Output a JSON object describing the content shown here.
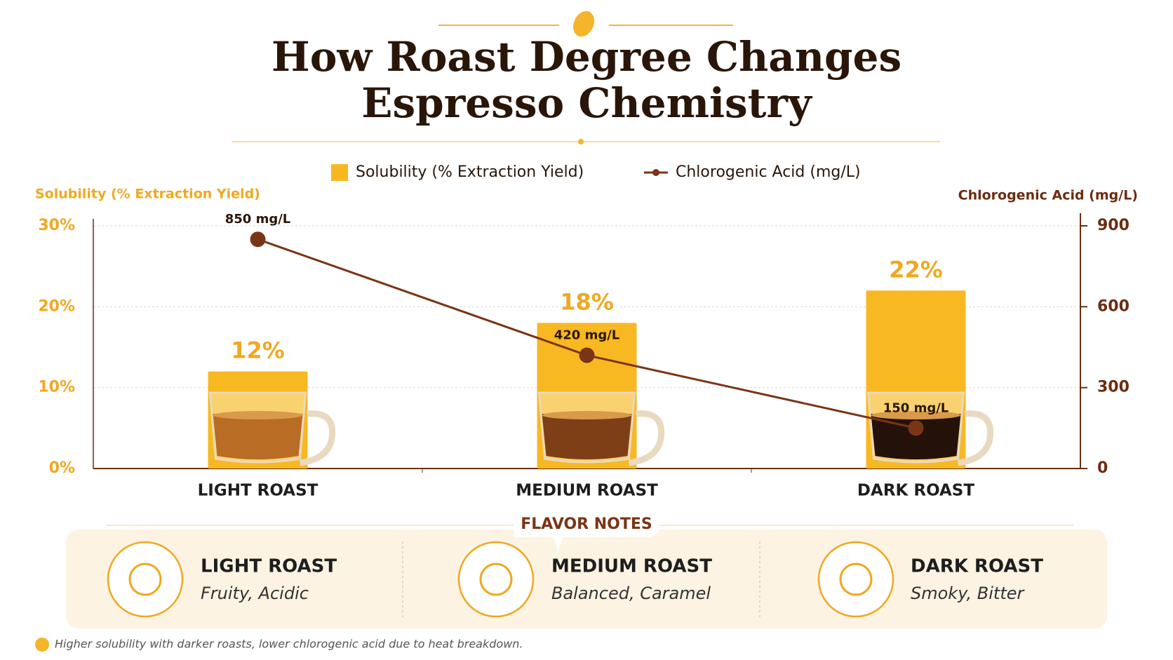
{
  "chart_data": {
    "type": "bar_line",
    "title": "How Roast Degree Changes Espresso Chemistry",
    "categories": [
      "LIGHT ROAST",
      "MEDIUM ROAST",
      "DARK ROAST"
    ],
    "ylabel": "Solubility (% Extraction Yield)",
    "y2label": "Chlorogenic Acid (mg/L)",
    "ylim": [
      0,
      30
    ],
    "yticks": [
      {
        "value": 0,
        "label": "0%"
      },
      {
        "value": 10,
        "label": "10%"
      },
      {
        "value": 20,
        "label": "20%"
      },
      {
        "value": 30,
        "label": "30%"
      }
    ],
    "y2lim": [
      0,
      900
    ],
    "y2ticks": [
      0,
      300,
      600,
      900
    ],
    "grid": true,
    "series": [
      {
        "name": "Solubility (% Extraction Yield)",
        "type": "bar",
        "color": "#f8b822",
        "values": [
          12,
          18,
          22
        ],
        "value_labels": [
          "12%",
          "18%",
          "22%"
        ]
      },
      {
        "name": "Chlorogenic Acid (mg/L)",
        "type": "line",
        "axis": "y2",
        "color": "#7a3516",
        "values": [
          850,
          420,
          150
        ],
        "value_labels": [
          "850 mg/L",
          "420 mg/L",
          "150 mg/L"
        ]
      }
    ]
  },
  "flavor_notes": {
    "title": "FLAVOR NOTES",
    "items": [
      {
        "name": "LIGHT ROAST",
        "notes": "Fruity, Acidic"
      },
      {
        "name": "MEDIUM ROAST",
        "notes": "Balanced, Caramel"
      },
      {
        "name": "DARK ROAST",
        "notes": "Smoky, Bitter"
      }
    ]
  },
  "footnote": "Higher solubility with darker roasts, lower chlorogenic acid due to heat breakdown."
}
